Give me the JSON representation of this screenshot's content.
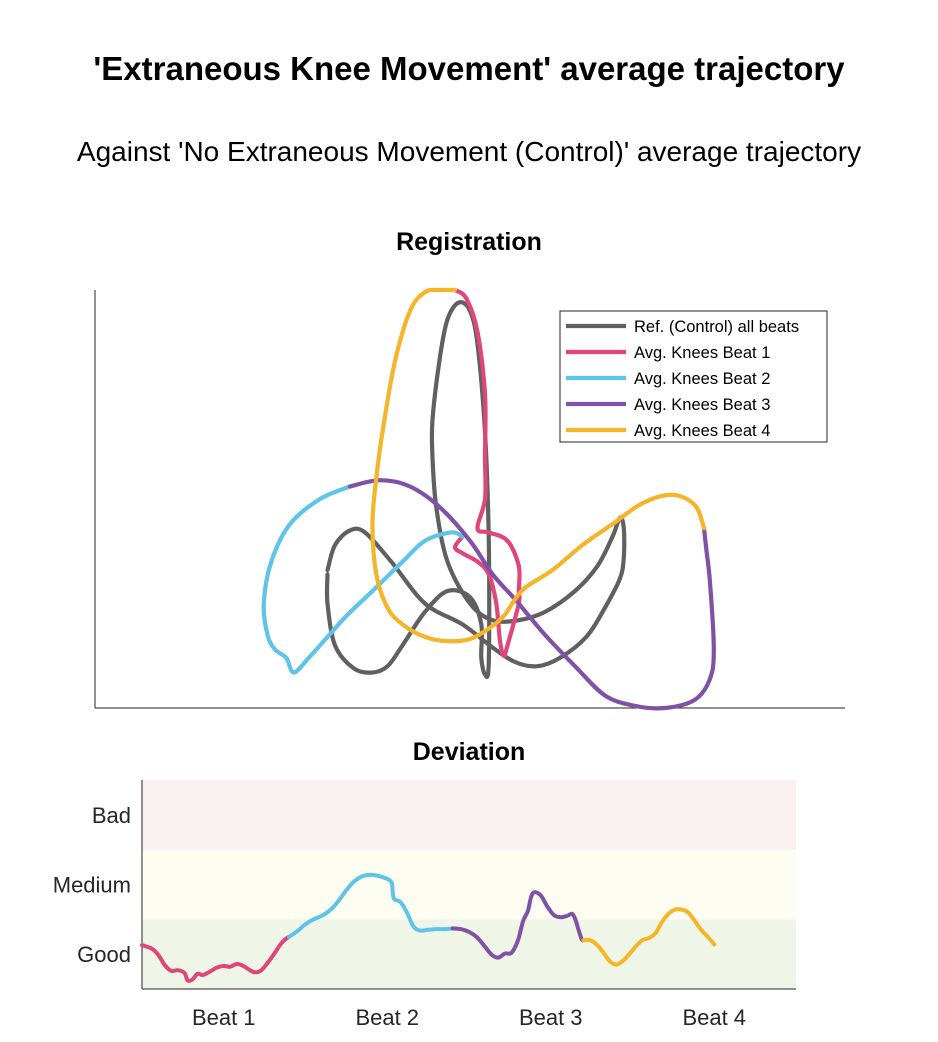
{
  "header": {
    "title": "'Extraneous Knee Movement' average trajectory",
    "subtitle": "Against 'No Extraneous Movement (Control)' average trajectory"
  },
  "colors": {
    "reference": "#606060",
    "beat1": "#e0467a",
    "beat2": "#5ec4e8",
    "beat3": "#7f52a6",
    "beat4": "#f6b42a",
    "band_bad": "#f9f0f1",
    "band_medium": "#fdfdf1",
    "band_good": "#eff6e7"
  },
  "chart_data": [
    {
      "type": "line",
      "title": "Registration",
      "xlabel": "",
      "ylabel": "",
      "axes_ticks": "none",
      "legend_position": "top-right",
      "series": [
        {
          "name": "Ref. (Control) all beats",
          "color": "#606060",
          "points": [
            [
              0.31,
              0.32
            ],
            [
              0.31,
              0.25
            ],
            [
              0.32,
              0.15
            ],
            [
              0.345,
              0.095
            ],
            [
              0.37,
              0.085
            ],
            [
              0.39,
              0.1
            ],
            [
              0.41,
              0.15
            ],
            [
              0.44,
              0.23
            ],
            [
              0.47,
              0.28
            ],
            [
              0.5,
              0.265
            ],
            [
              0.515,
              0.2
            ],
            [
              0.515,
              0.12
            ],
            [
              0.52,
              0.08
            ],
            [
              0.525,
              0.11
            ],
            [
              0.525,
              0.4
            ],
            [
              0.52,
              0.66
            ],
            [
              0.51,
              0.87
            ],
            [
              0.5,
              0.95
            ],
            [
              0.485,
              0.97
            ],
            [
              0.47,
              0.93
            ],
            [
              0.46,
              0.84
            ],
            [
              0.45,
              0.69
            ],
            [
              0.45,
              0.6
            ],
            [
              0.455,
              0.48
            ],
            [
              0.47,
              0.35
            ],
            [
              0.5,
              0.25
            ],
            [
              0.53,
              0.21
            ],
            [
              0.565,
              0.21
            ],
            [
              0.6,
              0.23
            ],
            [
              0.64,
              0.28
            ],
            [
              0.67,
              0.34
            ],
            [
              0.69,
              0.41
            ],
            [
              0.7,
              0.455
            ],
            [
              0.705,
              0.43
            ],
            [
              0.705,
              0.36
            ],
            [
              0.7,
              0.31
            ],
            [
              0.68,
              0.24
            ],
            [
              0.655,
              0.17
            ],
            [
              0.62,
              0.12
            ],
            [
              0.59,
              0.1
            ],
            [
              0.56,
              0.11
            ],
            [
              0.53,
              0.145
            ],
            [
              0.49,
              0.2
            ],
            [
              0.44,
              0.25
            ],
            [
              0.395,
              0.35
            ],
            [
              0.36,
              0.42
            ],
            [
              0.34,
              0.425
            ],
            [
              0.32,
              0.39
            ],
            [
              0.31,
              0.33
            ]
          ]
        },
        {
          "name": "Avg. Knees Beat 1",
          "color": "#e0467a",
          "points": [
            [
              0.48,
              1.0
            ],
            [
              0.495,
              0.98
            ],
            [
              0.51,
              0.9
            ],
            [
              0.52,
              0.75
            ],
            [
              0.52,
              0.6
            ],
            [
              0.52,
              0.5
            ],
            [
              0.51,
              0.43
            ],
            [
              0.525,
              0.42
            ],
            [
              0.55,
              0.4
            ],
            [
              0.565,
              0.34
            ],
            [
              0.565,
              0.28
            ],
            [
              0.565,
              0.25
            ],
            [
              0.55,
              0.15
            ],
            [
              0.545,
              0.125
            ],
            [
              0.54,
              0.16
            ],
            [
              0.535,
              0.25
            ],
            [
              0.525,
              0.32
            ],
            [
              0.51,
              0.35
            ],
            [
              0.49,
              0.37
            ],
            [
              0.48,
              0.385
            ],
            [
              0.49,
              0.41
            ]
          ]
        },
        {
          "name": "Avg. Knees Beat 2",
          "color": "#5ec4e8",
          "points": [
            [
              0.49,
              0.41
            ],
            [
              0.475,
              0.42
            ],
            [
              0.44,
              0.4
            ],
            [
              0.41,
              0.35
            ],
            [
              0.37,
              0.28
            ],
            [
              0.335,
              0.22
            ],
            [
              0.31,
              0.17
            ],
            [
              0.285,
              0.12
            ],
            [
              0.265,
              0.085
            ],
            [
              0.255,
              0.12
            ],
            [
              0.24,
              0.14
            ],
            [
              0.23,
              0.175
            ],
            [
              0.225,
              0.25
            ],
            [
              0.235,
              0.35
            ],
            [
              0.26,
              0.44
            ],
            [
              0.3,
              0.5
            ],
            [
              0.34,
              0.53
            ]
          ]
        },
        {
          "name": "Avg. Knees Beat 3",
          "color": "#7f52a6",
          "points": [
            [
              0.34,
              0.53
            ],
            [
              0.38,
              0.545
            ],
            [
              0.42,
              0.53
            ],
            [
              0.46,
              0.48
            ],
            [
              0.5,
              0.4
            ],
            [
              0.53,
              0.32
            ],
            [
              0.56,
              0.26
            ],
            [
              0.6,
              0.175
            ],
            [
              0.64,
              0.1
            ],
            [
              0.68,
              0.03
            ],
            [
              0.72,
              0.005
            ],
            [
              0.76,
              0.0
            ],
            [
              0.8,
              0.02
            ],
            [
              0.82,
              0.07
            ],
            [
              0.825,
              0.14
            ],
            [
              0.82,
              0.3
            ],
            [
              0.815,
              0.38
            ],
            [
              0.812,
              0.43
            ]
          ]
        },
        {
          "name": "Avg. Knees Beat 4",
          "color": "#f6b42a",
          "points": [
            [
              0.812,
              0.43
            ],
            [
              0.8,
              0.485
            ],
            [
              0.77,
              0.51
            ],
            [
              0.73,
              0.49
            ],
            [
              0.69,
              0.44
            ],
            [
              0.65,
              0.39
            ],
            [
              0.61,
              0.33
            ],
            [
              0.575,
              0.29
            ],
            [
              0.56,
              0.26
            ],
            [
              0.545,
              0.22
            ],
            [
              0.525,
              0.19
            ],
            [
              0.5,
              0.165
            ],
            [
              0.47,
              0.16
            ],
            [
              0.44,
              0.17
            ],
            [
              0.41,
              0.2
            ],
            [
              0.39,
              0.24
            ],
            [
              0.375,
              0.32
            ],
            [
              0.37,
              0.44
            ],
            [
              0.375,
              0.55
            ],
            [
              0.385,
              0.68
            ],
            [
              0.4,
              0.83
            ],
            [
              0.42,
              0.95
            ],
            [
              0.44,
              0.995
            ],
            [
              0.46,
              1.0
            ],
            [
              0.48,
              1.0
            ]
          ]
        }
      ],
      "legend": [
        {
          "label": "Ref. (Control) all beats",
          "color": "#606060"
        },
        {
          "label": "Avg. Knees Beat 1",
          "color": "#e0467a"
        },
        {
          "label": "Avg. Knees Beat 2",
          "color": "#5ec4e8"
        },
        {
          "label": "Avg. Knees Beat 3",
          "color": "#7f52a6"
        },
        {
          "label": "Avg. Knees Beat 4",
          "color": "#f6b42a"
        }
      ]
    },
    {
      "type": "line",
      "title": "Deviation",
      "xlabel": "",
      "ylabel": "",
      "xlim": [
        0,
        4
      ],
      "ylim": [
        0,
        3
      ],
      "x_ticks": [
        {
          "value": 0.5,
          "label": "Beat 1"
        },
        {
          "value": 1.5,
          "label": "Beat 2"
        },
        {
          "value": 2.5,
          "label": "Beat 3"
        },
        {
          "value": 3.5,
          "label": "Beat 4"
        }
      ],
      "y_ticks": [
        {
          "value": 0.5,
          "label": "Good"
        },
        {
          "value": 1.5,
          "label": "Medium"
        },
        {
          "value": 2.5,
          "label": "Bad"
        }
      ],
      "bands": [
        {
          "label": "Good",
          "from": 0,
          "to": 1,
          "color": "#eff6e7"
        },
        {
          "label": "Medium",
          "from": 1,
          "to": 2,
          "color": "#fdfdf1"
        },
        {
          "label": "Bad",
          "from": 2,
          "to": 3,
          "color": "#f9f0f1"
        }
      ],
      "series": [
        {
          "name": "Beat 1",
          "color": "#e0467a",
          "points": [
            [
              0.0,
              0.63
            ],
            [
              0.06,
              0.58
            ],
            [
              0.1,
              0.49
            ],
            [
              0.14,
              0.34
            ],
            [
              0.18,
              0.26
            ],
            [
              0.22,
              0.27
            ],
            [
              0.26,
              0.23
            ],
            [
              0.28,
              0.12
            ],
            [
              0.31,
              0.14
            ],
            [
              0.34,
              0.22
            ],
            [
              0.37,
              0.2
            ],
            [
              0.4,
              0.23
            ],
            [
              0.43,
              0.27
            ],
            [
              0.46,
              0.31
            ],
            [
              0.5,
              0.33
            ],
            [
              0.54,
              0.32
            ],
            [
              0.58,
              0.36
            ],
            [
              0.62,
              0.33
            ],
            [
              0.66,
              0.27
            ],
            [
              0.69,
              0.24
            ],
            [
              0.73,
              0.27
            ],
            [
              0.77,
              0.38
            ],
            [
              0.81,
              0.51
            ],
            [
              0.85,
              0.65
            ],
            [
              0.88,
              0.72
            ],
            [
              0.9,
              0.75
            ]
          ]
        },
        {
          "name": "Beat 2",
          "color": "#5ec4e8",
          "points": [
            [
              0.9,
              0.75
            ],
            [
              0.95,
              0.83
            ],
            [
              1.0,
              0.93
            ],
            [
              1.05,
              1.0
            ],
            [
              1.1,
              1.05
            ],
            [
              1.15,
              1.13
            ],
            [
              1.2,
              1.26
            ],
            [
              1.25,
              1.42
            ],
            [
              1.3,
              1.55
            ],
            [
              1.35,
              1.62
            ],
            [
              1.4,
              1.64
            ],
            [
              1.45,
              1.62
            ],
            [
              1.5,
              1.58
            ],
            [
              1.52,
              1.55
            ],
            [
              1.53,
              1.5
            ],
            [
              1.54,
              1.3
            ],
            [
              1.58,
              1.25
            ],
            [
              1.62,
              1.1
            ],
            [
              1.66,
              0.9
            ],
            [
              1.7,
              0.84
            ],
            [
              1.75,
              0.85
            ],
            [
              1.8,
              0.86
            ],
            [
              1.85,
              0.86
            ],
            [
              1.9,
              0.87
            ]
          ]
        },
        {
          "name": "Beat 3",
          "color": "#7f52a6",
          "points": [
            [
              1.9,
              0.87
            ],
            [
              1.95,
              0.86
            ],
            [
              2.0,
              0.82
            ],
            [
              2.05,
              0.74
            ],
            [
              2.1,
              0.6
            ],
            [
              2.14,
              0.49
            ],
            [
              2.18,
              0.45
            ],
            [
              2.22,
              0.51
            ],
            [
              2.26,
              0.52
            ],
            [
              2.3,
              0.7
            ],
            [
              2.33,
              0.97
            ],
            [
              2.36,
              1.12
            ],
            [
              2.38,
              1.32
            ],
            [
              2.4,
              1.39
            ],
            [
              2.44,
              1.34
            ],
            [
              2.48,
              1.18
            ],
            [
              2.52,
              1.06
            ],
            [
              2.56,
              1.03
            ],
            [
              2.6,
              1.05
            ],
            [
              2.63,
              1.08
            ],
            [
              2.65,
              1.0
            ],
            [
              2.67,
              0.85
            ],
            [
              2.69,
              0.71
            ],
            [
              2.7,
              0.7
            ]
          ]
        },
        {
          "name": "Beat 4",
          "color": "#f6b42a",
          "points": [
            [
              2.7,
              0.7
            ],
            [
              2.74,
              0.7
            ],
            [
              2.78,
              0.64
            ],
            [
              2.82,
              0.53
            ],
            [
              2.86,
              0.4
            ],
            [
              2.9,
              0.35
            ],
            [
              2.94,
              0.4
            ],
            [
              2.98,
              0.5
            ],
            [
              3.02,
              0.61
            ],
            [
              3.06,
              0.7
            ],
            [
              3.1,
              0.73
            ],
            [
              3.14,
              0.8
            ],
            [
              3.18,
              0.96
            ],
            [
              3.22,
              1.08
            ],
            [
              3.26,
              1.14
            ],
            [
              3.3,
              1.14
            ],
            [
              3.34,
              1.1
            ],
            [
              3.38,
              0.98
            ],
            [
              3.42,
              0.85
            ],
            [
              3.46,
              0.75
            ],
            [
              3.5,
              0.64
            ]
          ]
        }
      ]
    }
  ]
}
